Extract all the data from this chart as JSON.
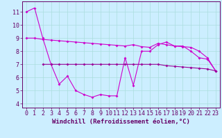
{
  "x": [
    0,
    1,
    2,
    3,
    4,
    5,
    6,
    7,
    8,
    9,
    10,
    11,
    12,
    13,
    14,
    15,
    16,
    17,
    18,
    19,
    20,
    21,
    22,
    23
  ],
  "line_main": [
    11.0,
    11.3,
    9.0,
    7.0,
    5.5,
    6.1,
    5.0,
    4.7,
    4.5,
    4.7,
    4.6,
    4.6,
    7.5,
    5.4,
    8.0,
    8.0,
    8.5,
    8.7,
    8.4,
    8.4,
    8.0,
    7.5,
    7.4,
    6.5
  ],
  "line_upper": [
    9.0,
    9.0,
    8.9,
    8.85,
    8.8,
    8.75,
    8.7,
    8.65,
    8.6,
    8.55,
    8.5,
    8.45,
    8.4,
    8.5,
    8.35,
    8.3,
    8.6,
    8.5,
    8.4,
    8.35,
    8.3,
    8.0,
    7.5,
    6.5
  ],
  "line_lower": [
    null,
    null,
    7.0,
    7.0,
    7.0,
    7.0,
    7.0,
    7.0,
    7.0,
    7.0,
    7.0,
    7.0,
    7.0,
    7.0,
    7.0,
    7.0,
    7.0,
    6.9,
    6.85,
    6.8,
    6.75,
    6.7,
    6.65,
    6.5
  ],
  "color_main": "#cc00cc",
  "color_upper": "#cc00cc",
  "color_lower": "#990099",
  "bg_color": "#cceeff",
  "grid_color": "#aadddd",
  "axis_color": "#660066",
  "ylim": [
    3.7,
    11.8
  ],
  "yticks": [
    4,
    5,
    6,
    7,
    8,
    9,
    10,
    11
  ],
  "xlabel": "Windchill (Refroidissement éolien,°C)",
  "xlabel_fontsize": 6.5,
  "tick_fontsize": 6.0,
  "marker": "D",
  "markersize": 2.0
}
